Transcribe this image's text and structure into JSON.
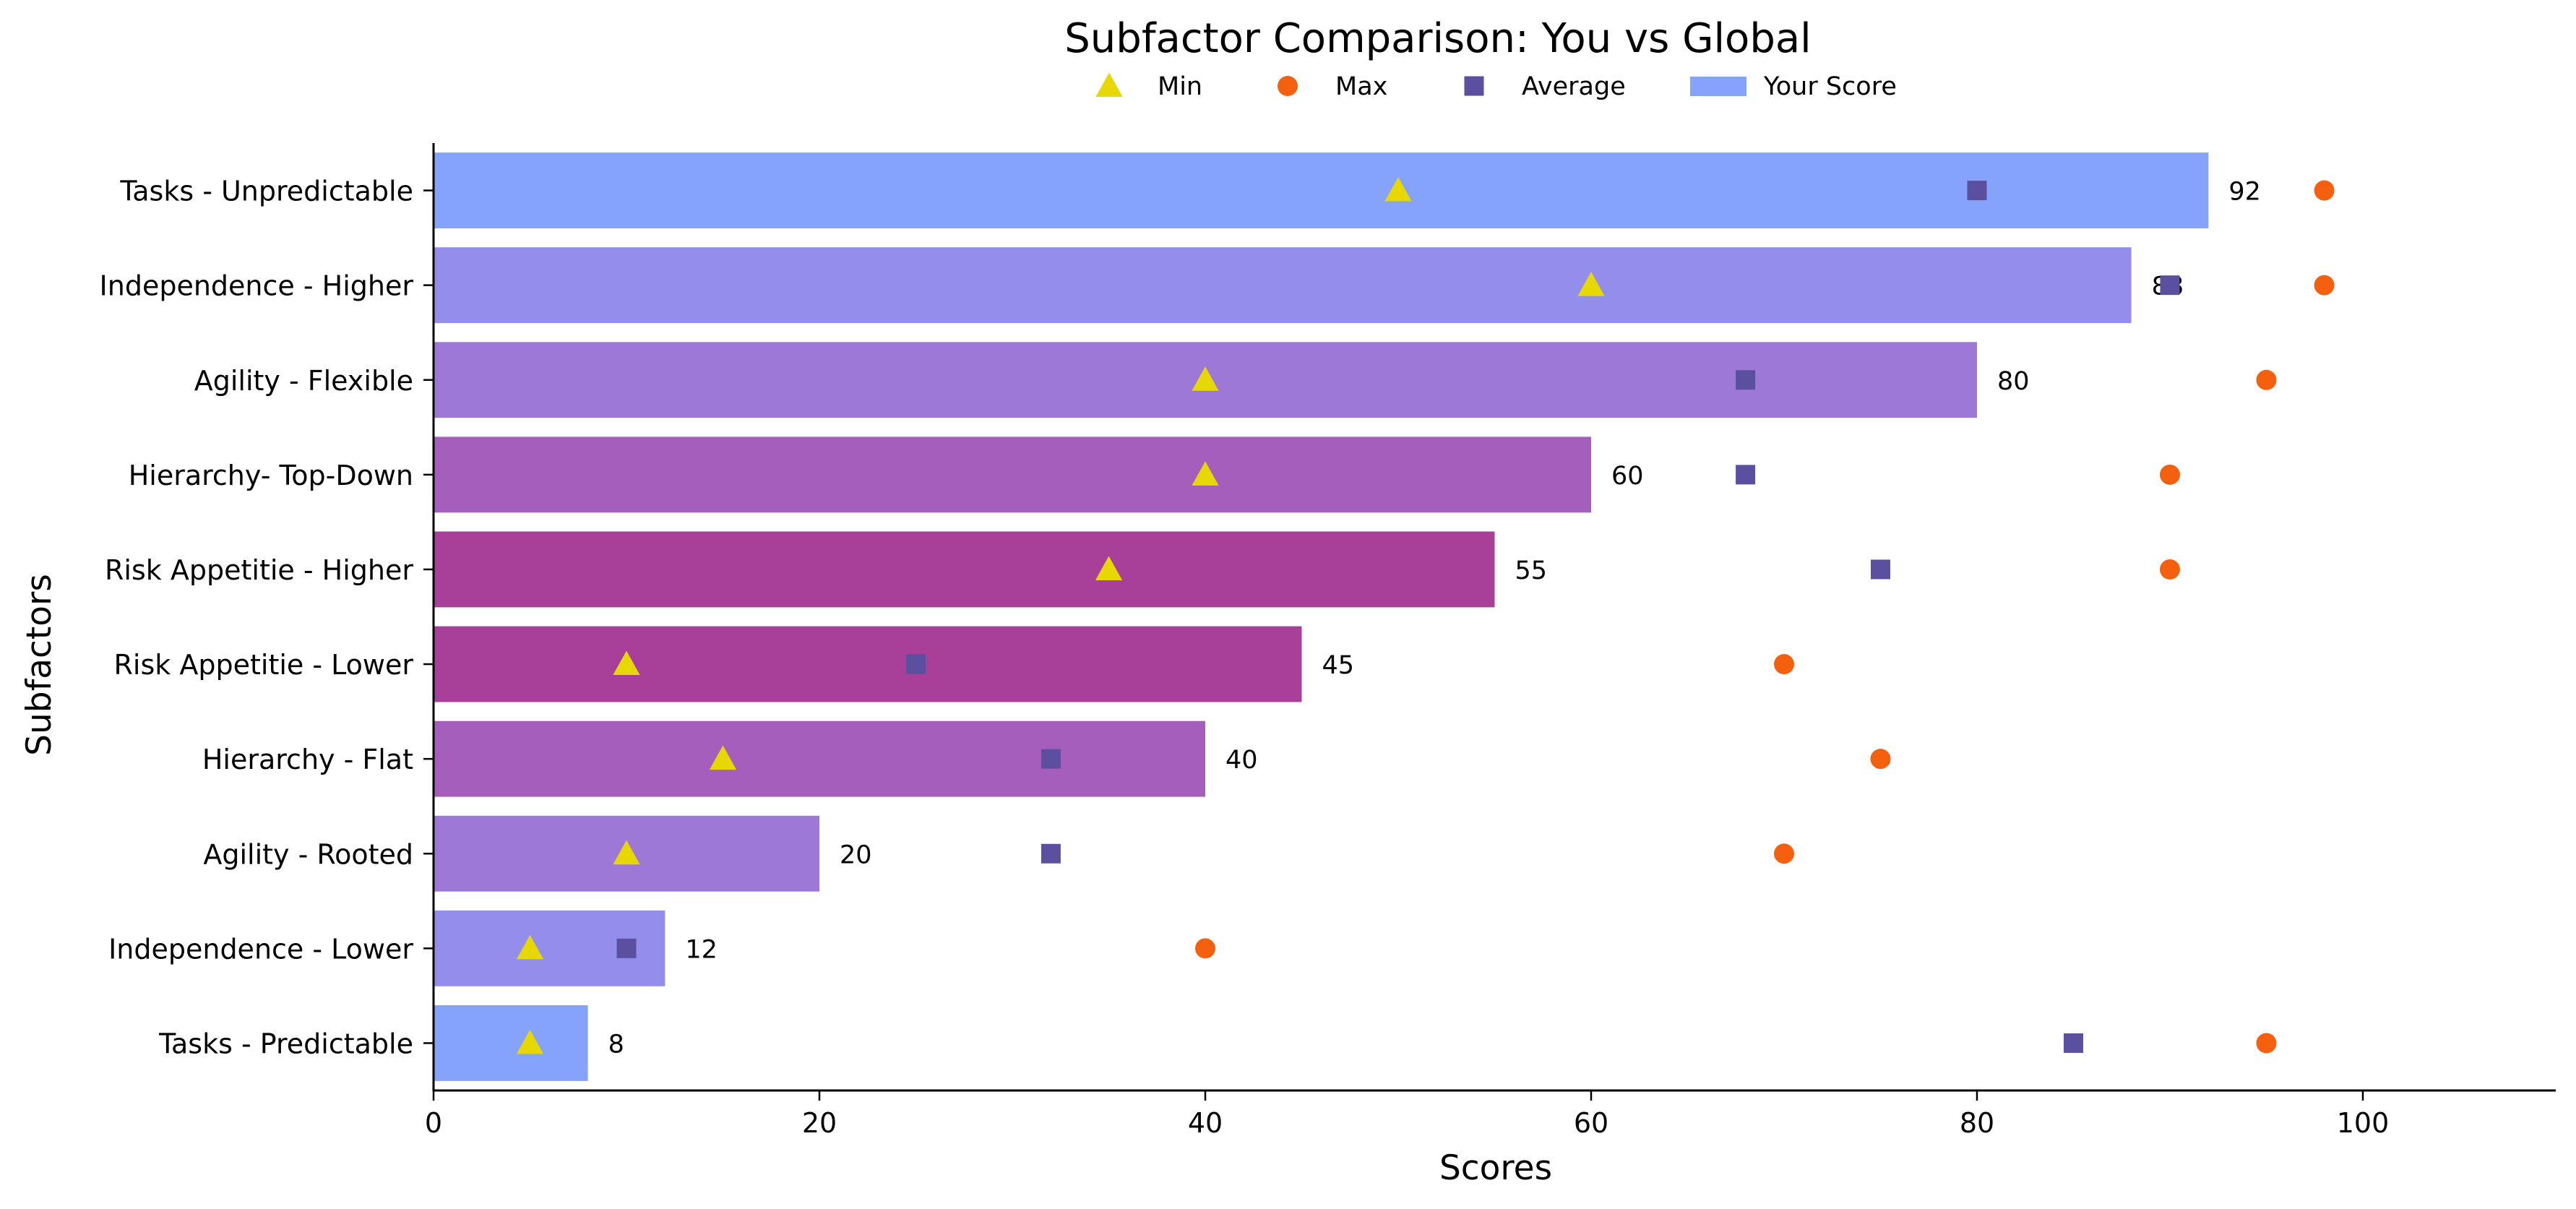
{
  "chart_data": {
    "type": "bar",
    "orientation": "horizontal",
    "title": "Subfactor Comparison: You vs Global",
    "xlabel": "Scores",
    "ylabel": "Subfactors",
    "xlim": [
      0,
      110
    ],
    "xticks": [
      "0",
      "20",
      "40",
      "60",
      "80",
      "100"
    ],
    "grid": false,
    "legend_position": "top",
    "legend": [
      {
        "label": "Min",
        "marker": "triangle",
        "color": "#e6d800"
      },
      {
        "label": "Max",
        "marker": "circle",
        "color": "#f5600f"
      },
      {
        "label": "Average",
        "marker": "square",
        "color": "#5b4fa0"
      },
      {
        "label": "Your Score",
        "marker": "bar",
        "color": "#85a3fb"
      }
    ],
    "categories": [
      "Tasks - Unpredictable",
      "Independence - Higher",
      "Agility - Flexible",
      "Hierarchy- Top-Down",
      "Risk Appetitie - Higher",
      "Risk Appetitie - Lower",
      "Hierarchy - Flat",
      "Agility - Rooted",
      "Independence - Lower",
      "Tasks - Predictable"
    ],
    "series": [
      {
        "name": "Your Score",
        "values": [
          92,
          88,
          80,
          60,
          55,
          45,
          40,
          20,
          12,
          8
        ],
        "colors": [
          "#85a3fb",
          "#938eec",
          "#9e78d6",
          "#a65ebc",
          "#a8409a",
          "#a8409a",
          "#a65ebc",
          "#9e78d6",
          "#938eec",
          "#85a3fb"
        ]
      },
      {
        "name": "Min",
        "values": [
          50,
          60,
          40,
          40,
          35,
          10,
          15,
          10,
          5,
          5
        ]
      },
      {
        "name": "Max",
        "values": [
          98,
          98,
          95,
          90,
          90,
          70,
          75,
          70,
          40,
          95
        ]
      },
      {
        "name": "Average",
        "values": [
          80,
          90,
          68,
          68,
          75,
          25,
          32,
          32,
          10,
          85
        ]
      }
    ]
  }
}
